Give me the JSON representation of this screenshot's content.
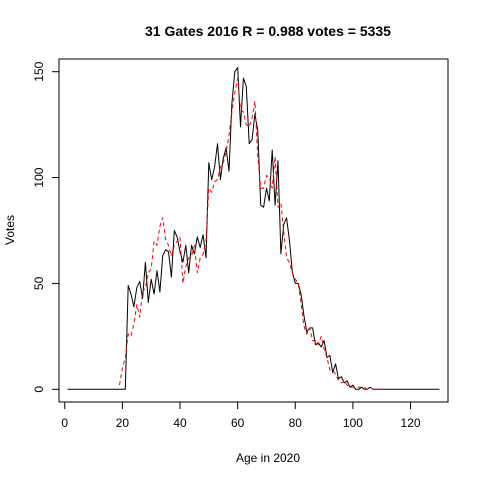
{
  "chart_data": {
    "type": "line",
    "title": "31 Gates 2016 R = 0.988 votes = 5335",
    "xlabel": "Age in 2020",
    "ylabel": "Votes",
    "xlim": [
      -2,
      133
    ],
    "ylim": [
      -6,
      156
    ],
    "xticks": [
      0,
      20,
      40,
      60,
      80,
      100,
      120
    ],
    "yticks": [
      0,
      50,
      100,
      150
    ],
    "grid": false,
    "legend": "none",
    "series": [
      {
        "color": "#000000",
        "dash": "solid",
        "x": [
          1,
          21,
          22,
          23,
          24,
          25,
          26,
          27,
          28,
          29,
          30,
          31,
          32,
          33,
          34,
          35,
          36,
          37,
          38,
          39,
          40,
          41,
          42,
          43,
          44,
          45,
          46,
          47,
          48,
          49,
          50,
          51,
          52,
          53,
          54,
          55,
          56,
          57,
          58,
          59,
          60,
          61,
          62,
          63,
          64,
          65,
          66,
          67,
          68,
          69,
          70,
          71,
          72,
          73,
          74,
          75,
          76,
          77,
          78,
          79,
          80,
          81,
          82,
          83,
          84,
          85,
          86,
          87,
          88,
          89,
          90,
          91,
          92,
          93,
          94,
          95,
          96,
          97,
          98,
          99,
          100,
          101,
          102,
          103,
          104,
          105,
          106,
          107,
          108,
          109,
          110,
          130
        ],
        "y": [
          0,
          0,
          49,
          45,
          39,
          48,
          51,
          43,
          60,
          41,
          52,
          45,
          56,
          46,
          63,
          66,
          65,
          53,
          75,
          72,
          65,
          60,
          68,
          55,
          68,
          64,
          72,
          67,
          73,
          62,
          107,
          99,
          105,
          116,
          99,
          109,
          114,
          103,
          135,
          150,
          152,
          124,
          147,
          143,
          116,
          118,
          130,
          122,
          87,
          86,
          95,
          89,
          113,
          87,
          108,
          64,
          78,
          81,
          70,
          55,
          50,
          50,
          45,
          35,
          27,
          29,
          29,
          21,
          22,
          20,
          23,
          15,
          16,
          8,
          12,
          5,
          6,
          3,
          4,
          1,
          2,
          0,
          0,
          1,
          0,
          0,
          1,
          0,
          0,
          0,
          0,
          0
        ]
      },
      {
        "color": "#ff0000",
        "dash": "dashed",
        "x": [
          19,
          20,
          21,
          22,
          23,
          24,
          25,
          26,
          27,
          28,
          29,
          30,
          31,
          32,
          33,
          34,
          35,
          36,
          37,
          38,
          39,
          40,
          41,
          42,
          43,
          44,
          45,
          46,
          47,
          48,
          49,
          50,
          51,
          52,
          53,
          54,
          55,
          56,
          57,
          58,
          59,
          60,
          61,
          62,
          63,
          64,
          65,
          66,
          67,
          68,
          69,
          70,
          71,
          72,
          73,
          74,
          75,
          76,
          77,
          78,
          79,
          80,
          81,
          82,
          83,
          84,
          85,
          86,
          87,
          88,
          89,
          90,
          91,
          92,
          93,
          94,
          95,
          96,
          97,
          98,
          99,
          100,
          101,
          102,
          103,
          104,
          105,
          106,
          107,
          108,
          109,
          110
        ],
        "y": [
          2,
          10,
          15,
          26,
          25,
          31,
          40,
          34,
          46,
          48,
          55,
          57,
          70,
          68,
          77,
          81,
          71,
          68,
          63,
          68,
          70,
          72,
          50,
          58,
          62,
          63,
          68,
          55,
          62,
          64,
          70,
          95,
          93,
          98,
          99,
          105,
          107,
          112,
          120,
          131,
          140,
          147,
          132,
          131,
          125,
          124,
          128,
          136,
          110,
          95,
          95,
          101,
          100,
          95,
          110,
          86,
          88,
          74,
          62,
          60,
          55,
          52,
          50,
          41,
          30,
          26,
          29,
          23,
          23,
          21,
          25,
          19,
          15,
          9,
          9,
          7,
          4,
          3,
          4,
          2,
          1,
          1,
          1,
          1,
          1,
          1,
          0,
          1,
          0,
          0,
          0,
          0
        ]
      }
    ]
  }
}
